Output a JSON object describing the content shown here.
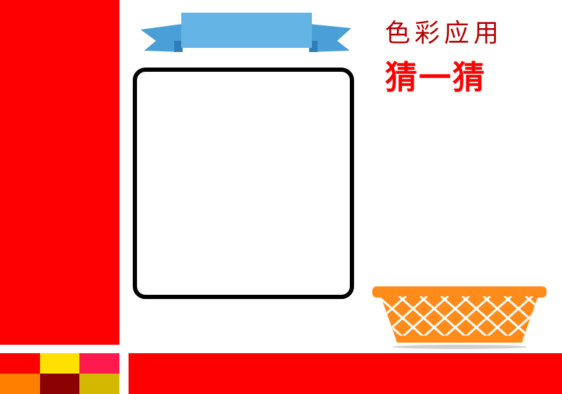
{
  "title": {
    "line1": "色彩应用",
    "line2": "猜一猜"
  },
  "colors": {
    "primary_red": "#ff0000",
    "title_dark_red": "#b30000",
    "ribbon_blue": "#64b4e6",
    "basket_orange": "#ff8c1a",
    "frame_black": "#000000"
  },
  "palette_tiles": [
    "#ff0000",
    "#ffe000",
    "#ff1a4d",
    "#ff8000",
    "#8b0000",
    "#d4b800"
  ],
  "icons": {
    "ribbon": "ribbon-banner-icon",
    "basket": "basket-icon"
  }
}
